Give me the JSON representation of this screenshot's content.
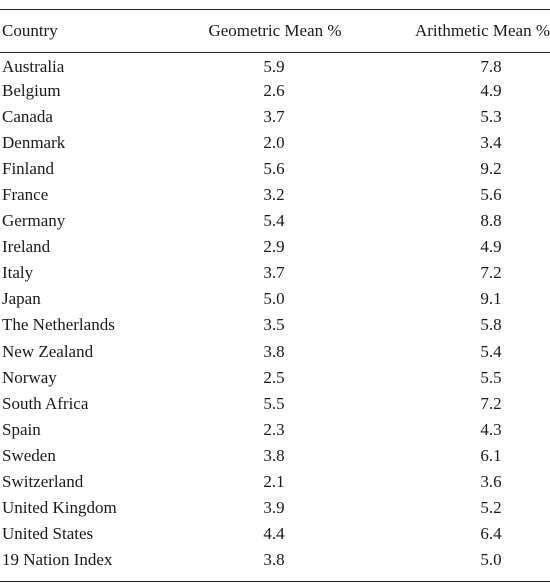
{
  "table": {
    "headers": {
      "country": "Country",
      "geometric": "Geometric Mean %",
      "arithmetic": "Arithmetic Mean %"
    },
    "rows": [
      {
        "country": "Australia",
        "geometric": "5.9",
        "arithmetic": "7.8"
      },
      {
        "country": "Belgium",
        "geometric": "2.6",
        "arithmetic": "4.9"
      },
      {
        "country": "Canada",
        "geometric": "3.7",
        "arithmetic": "5.3"
      },
      {
        "country": "Denmark",
        "geometric": "2.0",
        "arithmetic": "3.4"
      },
      {
        "country": "Finland",
        "geometric": "5.6",
        "arithmetic": "9.2"
      },
      {
        "country": "France",
        "geometric": "3.2",
        "arithmetic": "5.6"
      },
      {
        "country": "Germany",
        "geometric": "5.4",
        "arithmetic": "8.8"
      },
      {
        "country": "Ireland",
        "geometric": "2.9",
        "arithmetic": "4.9"
      },
      {
        "country": "Italy",
        "geometric": "3.7",
        "arithmetic": "7.2"
      },
      {
        "country": "Japan",
        "geometric": "5.0",
        "arithmetic": "9.1"
      },
      {
        "country": "The Netherlands",
        "geometric": "3.5",
        "arithmetic": "5.8"
      },
      {
        "country": "New Zealand",
        "geometric": "3.8",
        "arithmetic": "5.4"
      },
      {
        "country": "Norway",
        "geometric": "2.5",
        "arithmetic": "5.5"
      },
      {
        "country": "South Africa",
        "geometric": "5.5",
        "arithmetic": "7.2"
      },
      {
        "country": "Spain",
        "geometric": "2.3",
        "arithmetic": "4.3"
      },
      {
        "country": "Sweden",
        "geometric": "3.8",
        "arithmetic": "6.1"
      },
      {
        "country": "Switzerland",
        "geometric": "2.1",
        "arithmetic": "3.6"
      },
      {
        "country": "United Kingdom",
        "geometric": "3.9",
        "arithmetic": "5.2"
      },
      {
        "country": "United States",
        "geometric": "4.4",
        "arithmetic": "6.4"
      },
      {
        "country": "19 Nation Index",
        "geometric": "3.8",
        "arithmetic": "5.0"
      }
    ]
  }
}
